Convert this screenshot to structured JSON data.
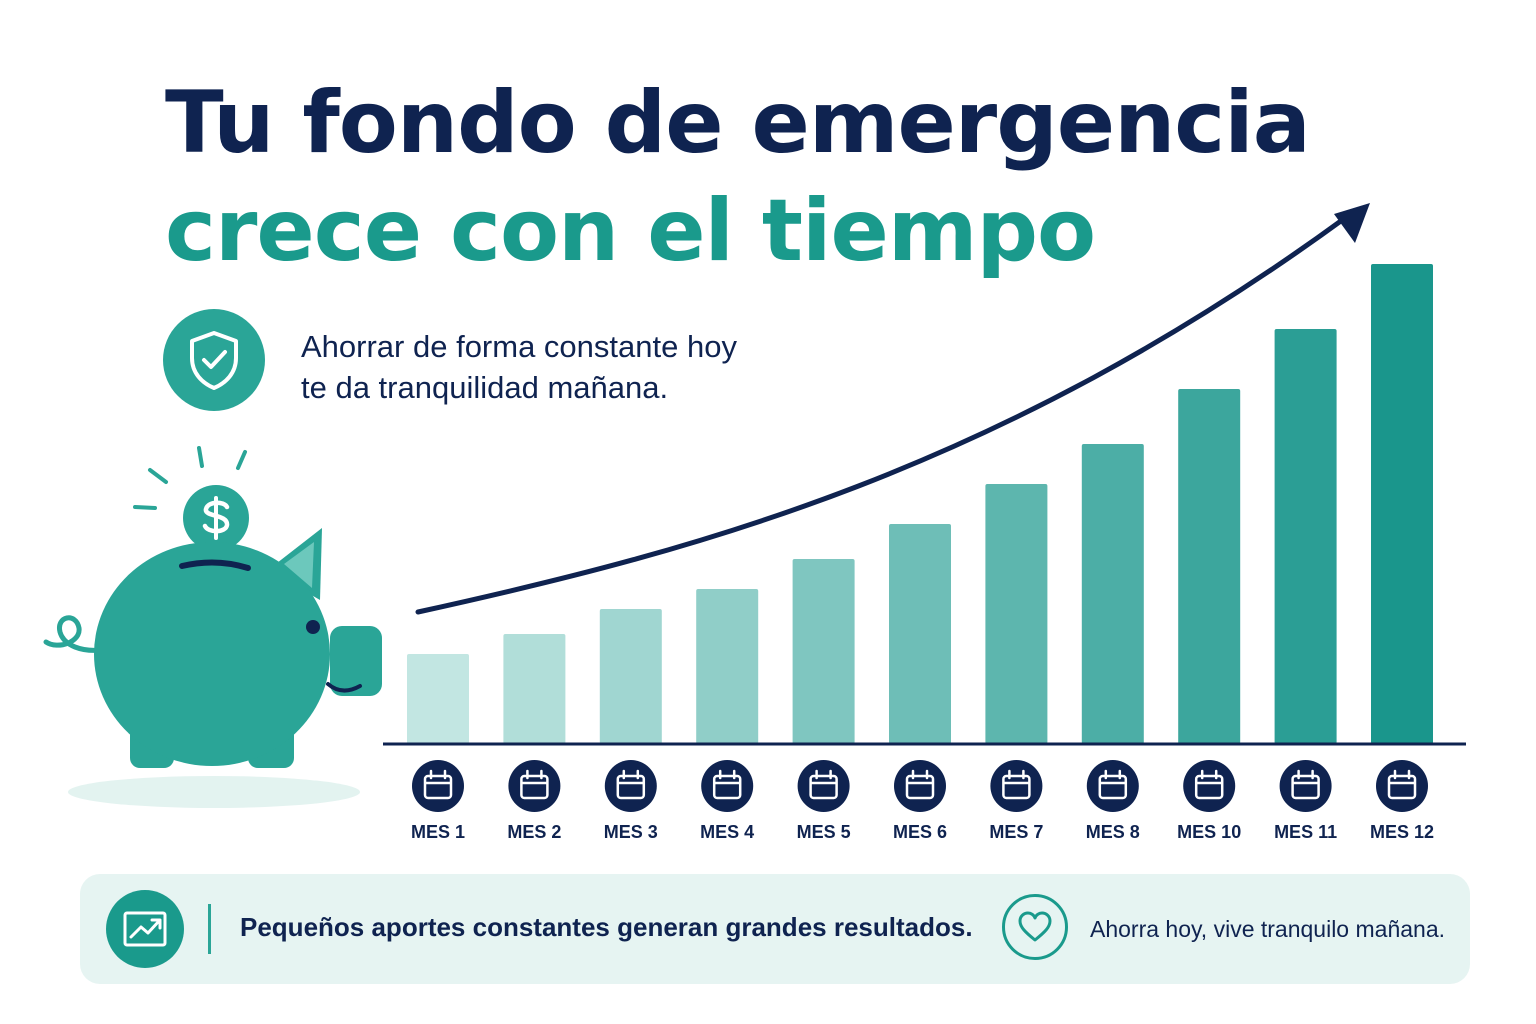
{
  "header": {
    "title_line1": "Tu fondo de emergencia",
    "title_line2": "crece con el tiempo"
  },
  "subtitle": {
    "line1": "Ahorrar de forma constante hoy",
    "line2": "te da tranquilidad mañana."
  },
  "icons": {
    "shield": "shield-check-icon",
    "piggy_bank": "piggy-bank-icon",
    "coin": "dollar-coin-icon",
    "calendar": "calendar-icon",
    "trend": "trend-up-icon",
    "heart": "heart-icon",
    "arrow": "growth-arrow-icon"
  },
  "colors": {
    "navy": "#0f2350",
    "teal": "#1a9a8c",
    "teal_light": "#c2e6e2",
    "bar_bg": "#e6f4f2"
  },
  "chart_data": {
    "type": "bar",
    "categories": [
      "MES 1",
      "MES 2",
      "MES 3",
      "MES 4",
      "MES 5",
      "MES 6",
      "MES 7",
      "MES 8",
      "MES 10",
      "MES 11",
      "MES 12"
    ],
    "values": [
      9,
      11,
      13.5,
      15.5,
      18.5,
      22,
      26,
      30,
      35.5,
      41.5,
      48
    ],
    "ylim": [
      0,
      50
    ],
    "title": "",
    "xlabel": "",
    "ylabel": "",
    "grid": false,
    "legend": "none",
    "trend_arrow": true
  },
  "footer": {
    "message": "Pequeños aportes constantes generan grandes resultados.",
    "tagline": "Ahorra hoy, vive tranquilo mañana."
  }
}
